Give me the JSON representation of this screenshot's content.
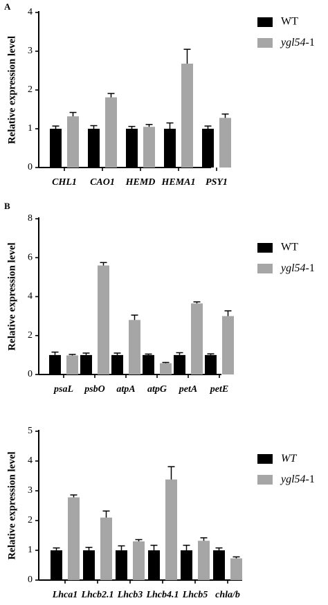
{
  "colors": {
    "wt": "#000000",
    "mutant": "#a6a6a6",
    "axis": "#000000",
    "error_bar": "#000000"
  },
  "chart_data": [
    {
      "type": "bar",
      "panel_label": "A",
      "ylabel": "Relative expression level",
      "ylim": [
        0,
        4
      ],
      "yticks": [
        0,
        1,
        2,
        3,
        4
      ],
      "categories": [
        "CHL1",
        "CAO1",
        "HEMD",
        "HEMA1",
        "PSY1"
      ],
      "categories_italic": true,
      "legend_position": "top-right",
      "series": [
        {
          "name": "WT",
          "name_italic_prefix": "",
          "name_suffix": "",
          "color_key": "wt",
          "values": [
            1.0,
            1.0,
            1.0,
            1.0,
            1.0
          ],
          "errors": [
            0.07,
            0.08,
            0.06,
            0.15,
            0.07
          ]
        },
        {
          "name": "ygl54-1",
          "name_italic_prefix": "ygl54",
          "name_suffix": "-1",
          "color_key": "mutant",
          "values": [
            1.32,
            1.81,
            1.05,
            2.68,
            1.28
          ],
          "errors": [
            0.1,
            0.1,
            0.06,
            0.37,
            0.1
          ]
        }
      ]
    },
    {
      "type": "bar",
      "panel_label": "B",
      "ylabel": "Relative expression level",
      "ylim": [
        0,
        8
      ],
      "yticks": [
        0,
        2,
        4,
        6,
        8
      ],
      "categories": [
        "psaL",
        "psbO",
        "atpA",
        "atpG",
        "petA",
        "petE"
      ],
      "categories_italic": true,
      "legend_position": "top-right",
      "series": [
        {
          "name": "WT",
          "name_italic_prefix": "",
          "name_suffix": "",
          "color_key": "wt",
          "values": [
            1.0,
            1.0,
            1.0,
            1.0,
            1.0,
            1.0
          ],
          "errors": [
            0.15,
            0.1,
            0.1,
            0.05,
            0.12,
            0.06
          ]
        },
        {
          "name": "ygl54-1",
          "name_italic_prefix": "ygl54",
          "name_suffix": "-1",
          "color_key": "mutant",
          "values": [
            0.98,
            5.6,
            2.8,
            0.58,
            3.65,
            3.0
          ],
          "errors": [
            0.05,
            0.15,
            0.25,
            0.04,
            0.08,
            0.27
          ]
        }
      ]
    },
    {
      "type": "bar",
      "panel_label": "",
      "ylabel": "Relative expression level",
      "ylim": [
        0,
        5
      ],
      "yticks": [
        0,
        1,
        2,
        3,
        4,
        5
      ],
      "categories": [
        "Lhca1",
        "Lhcb2.1",
        "Lhcb3",
        "Lhcb4.1",
        "Lhcb5",
        "chla/b"
      ],
      "categories_italic": true,
      "legend_position": "top-right",
      "series": [
        {
          "name": "WT",
          "name_italic_prefix": "WT",
          "name_suffix": "",
          "color_key": "wt",
          "values": [
            1.0,
            1.0,
            1.0,
            1.0,
            1.0,
            1.0
          ],
          "errors": [
            0.08,
            0.1,
            0.15,
            0.17,
            0.17,
            0.08
          ]
        },
        {
          "name": "ygl54-1",
          "name_italic_prefix": "ygl54",
          "name_suffix": "-1",
          "color_key": "mutant",
          "values": [
            2.78,
            2.1,
            1.3,
            3.38,
            1.32,
            0.73
          ],
          "errors": [
            0.08,
            0.22,
            0.06,
            0.43,
            0.1,
            0.05
          ]
        }
      ]
    }
  ]
}
